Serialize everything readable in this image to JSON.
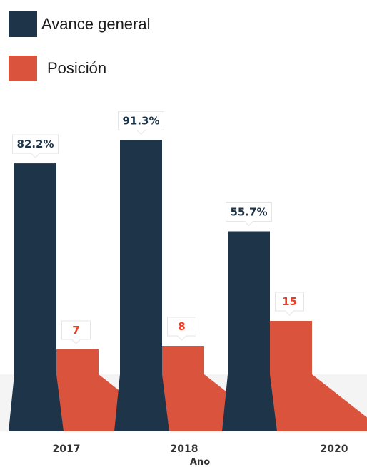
{
  "chart_data": {
    "type": "bar",
    "categories": [
      "2017",
      "2018",
      "2020"
    ],
    "xlabel": "Año",
    "series": [
      {
        "name": "Avance general",
        "values": [
          82.2,
          91.3,
          55.7
        ],
        "labels": [
          "82.2%",
          "91.3%",
          "55.7%"
        ],
        "color": "#1e3549",
        "label_color": "#1e3549"
      },
      {
        "name": "Posición",
        "values": [
          7,
          8,
          15
        ],
        "labels": [
          "7",
          "8",
          "15"
        ],
        "color": "#d9533d",
        "label_color": "#f03c22"
      }
    ],
    "legend_position": "top-left",
    "grid": false
  }
}
